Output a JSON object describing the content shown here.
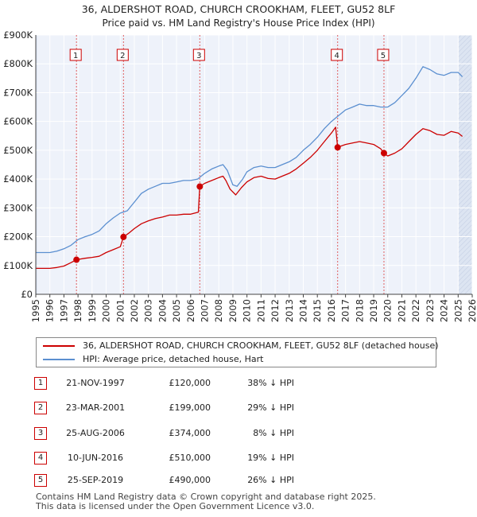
{
  "chart_data": {
    "type": "line",
    "title": "36, ALDERSHOT ROAD, CHURCH CROOKHAM, FLEET, GU52 8LF",
    "subtitle": "Price paid vs. HM Land Registry's House Price Index (HPI)",
    "xlim": [
      1995,
      2026
    ],
    "ylim": [
      0,
      900000
    ],
    "x_ticks": [
      "1995",
      "1996",
      "1997",
      "1998",
      "1999",
      "2000",
      "2001",
      "2002",
      "2003",
      "2004",
      "2005",
      "2006",
      "2007",
      "2008",
      "2009",
      "2010",
      "2011",
      "2012",
      "2013",
      "2014",
      "2015",
      "2016",
      "2017",
      "2018",
      "2019",
      "2020",
      "2021",
      "2022",
      "2023",
      "2024",
      "2025",
      "2026"
    ],
    "y_ticks": [
      {
        "value": 0,
        "label": "£0"
      },
      {
        "value": 100000,
        "label": "£100K"
      },
      {
        "value": 200000,
        "label": "£200K"
      },
      {
        "value": 300000,
        "label": "£300K"
      },
      {
        "value": 400000,
        "label": "£400K"
      },
      {
        "value": 500000,
        "label": "£500K"
      },
      {
        "value": 600000,
        "label": "£600K"
      },
      {
        "value": 700000,
        "label": "£700K"
      },
      {
        "value": 800000,
        "label": "£800K"
      },
      {
        "value": 900000,
        "label": "£900K"
      }
    ],
    "shaded_regions": [
      [
        1995,
        1995.1
      ],
      [
        2025.0,
        2026
      ]
    ],
    "series": [
      {
        "name": "36, ALDERSHOT ROAD, CHURCH CROOKHAM, FLEET, GU52 8LF (detached house)",
        "color": "#cc0000",
        "points": [
          [
            1995.0,
            90000
          ],
          [
            1996.0,
            90000
          ],
          [
            1996.5,
            93000
          ],
          [
            1997.0,
            98000
          ],
          [
            1997.5,
            110000
          ],
          [
            1997.89,
            120000
          ],
          [
            1998.5,
            125000
          ],
          [
            1999.0,
            128000
          ],
          [
            1999.5,
            132000
          ],
          [
            2000.0,
            145000
          ],
          [
            2000.5,
            155000
          ],
          [
            2001.0,
            165000
          ],
          [
            2001.23,
            199000
          ],
          [
            2001.6,
            212000
          ],
          [
            2002.0,
            228000
          ],
          [
            2002.5,
            245000
          ],
          [
            2003.0,
            255000
          ],
          [
            2003.5,
            263000
          ],
          [
            2004.0,
            268000
          ],
          [
            2004.5,
            275000
          ],
          [
            2005.0,
            275000
          ],
          [
            2005.5,
            278000
          ],
          [
            2006.0,
            278000
          ],
          [
            2006.55,
            285000
          ],
          [
            2006.65,
            374000
          ],
          [
            2007.0,
            385000
          ],
          [
            2007.5,
            395000
          ],
          [
            2008.0,
            405000
          ],
          [
            2008.3,
            410000
          ],
          [
            2008.5,
            395000
          ],
          [
            2008.8,
            365000
          ],
          [
            2009.2,
            345000
          ],
          [
            2009.6,
            370000
          ],
          [
            2010.0,
            390000
          ],
          [
            2010.5,
            405000
          ],
          [
            2011.0,
            410000
          ],
          [
            2011.5,
            402000
          ],
          [
            2012.0,
            400000
          ],
          [
            2012.5,
            410000
          ],
          [
            2013.0,
            420000
          ],
          [
            2013.5,
            435000
          ],
          [
            2014.0,
            455000
          ],
          [
            2014.5,
            475000
          ],
          [
            2015.0,
            500000
          ],
          [
            2015.5,
            530000
          ],
          [
            2016.0,
            560000
          ],
          [
            2016.3,
            580000
          ],
          [
            2016.44,
            510000
          ],
          [
            2016.7,
            515000
          ],
          [
            2017.0,
            520000
          ],
          [
            2017.5,
            525000
          ],
          [
            2018.0,
            530000
          ],
          [
            2018.5,
            525000
          ],
          [
            2019.0,
            520000
          ],
          [
            2019.5,
            505000
          ],
          [
            2019.73,
            490000
          ],
          [
            2020.0,
            480000
          ],
          [
            2020.5,
            490000
          ],
          [
            2021.0,
            505000
          ],
          [
            2021.5,
            530000
          ],
          [
            2022.0,
            555000
          ],
          [
            2022.5,
            575000
          ],
          [
            2023.0,
            568000
          ],
          [
            2023.5,
            555000
          ],
          [
            2024.0,
            552000
          ],
          [
            2024.5,
            565000
          ],
          [
            2025.0,
            560000
          ],
          [
            2025.3,
            548000
          ]
        ]
      },
      {
        "name": "HPI: Average price, detached house, Hart",
        "color": "#5b8fd0",
        "points": [
          [
            1995.0,
            145000
          ],
          [
            1995.5,
            145000
          ],
          [
            1996.0,
            145000
          ],
          [
            1996.5,
            150000
          ],
          [
            1997.0,
            158000
          ],
          [
            1997.5,
            170000
          ],
          [
            1998.0,
            190000
          ],
          [
            1998.5,
            200000
          ],
          [
            1999.0,
            208000
          ],
          [
            1999.5,
            220000
          ],
          [
            2000.0,
            245000
          ],
          [
            2000.5,
            265000
          ],
          [
            2001.0,
            282000
          ],
          [
            2001.5,
            290000
          ],
          [
            2002.0,
            320000
          ],
          [
            2002.5,
            350000
          ],
          [
            2003.0,
            365000
          ],
          [
            2003.5,
            375000
          ],
          [
            2004.0,
            385000
          ],
          [
            2004.5,
            385000
          ],
          [
            2005.0,
            390000
          ],
          [
            2005.5,
            395000
          ],
          [
            2006.0,
            395000
          ],
          [
            2006.5,
            400000
          ],
          [
            2007.0,
            420000
          ],
          [
            2007.5,
            435000
          ],
          [
            2008.0,
            445000
          ],
          [
            2008.3,
            450000
          ],
          [
            2008.6,
            430000
          ],
          [
            2009.0,
            380000
          ],
          [
            2009.3,
            375000
          ],
          [
            2009.7,
            400000
          ],
          [
            2010.0,
            425000
          ],
          [
            2010.5,
            440000
          ],
          [
            2011.0,
            445000
          ],
          [
            2011.5,
            440000
          ],
          [
            2012.0,
            440000
          ],
          [
            2012.5,
            450000
          ],
          [
            2013.0,
            460000
          ],
          [
            2013.5,
            475000
          ],
          [
            2014.0,
            500000
          ],
          [
            2014.5,
            520000
          ],
          [
            2015.0,
            545000
          ],
          [
            2015.5,
            575000
          ],
          [
            2016.0,
            600000
          ],
          [
            2016.5,
            620000
          ],
          [
            2017.0,
            640000
          ],
          [
            2017.5,
            650000
          ],
          [
            2018.0,
            660000
          ],
          [
            2018.5,
            655000
          ],
          [
            2019.0,
            655000
          ],
          [
            2019.5,
            650000
          ],
          [
            2020.0,
            650000
          ],
          [
            2020.5,
            665000
          ],
          [
            2021.0,
            690000
          ],
          [
            2021.5,
            715000
          ],
          [
            2022.0,
            750000
          ],
          [
            2022.5,
            790000
          ],
          [
            2023.0,
            780000
          ],
          [
            2023.5,
            765000
          ],
          [
            2024.0,
            760000
          ],
          [
            2024.5,
            770000
          ],
          [
            2025.0,
            770000
          ],
          [
            2025.3,
            755000
          ]
        ]
      }
    ],
    "sales": [
      {
        "num": "1",
        "x": 1997.89,
        "price": 120000,
        "date": "21-NOV-1997",
        "price_label": "£120,000",
        "hpi": "38% ↓ HPI"
      },
      {
        "num": "2",
        "x": 2001.23,
        "price": 199000,
        "date": "23-MAR-2001",
        "price_label": "£199,000",
        "hpi": "29% ↓ HPI"
      },
      {
        "num": "3",
        "x": 2006.65,
        "price": 374000,
        "date": "25-AUG-2006",
        "price_label": "£374,000",
        "hpi": "8% ↓ HPI"
      },
      {
        "num": "4",
        "x": 2016.44,
        "price": 510000,
        "date": "10-JUN-2016",
        "price_label": "£510,000",
        "hpi": "19% ↓ HPI"
      },
      {
        "num": "5",
        "x": 2019.73,
        "price": 490000,
        "date": "25-SEP-2019",
        "price_label": "£490,000",
        "hpi": "26% ↓ HPI"
      }
    ]
  },
  "legend": {
    "property": "36, ALDERSHOT ROAD, CHURCH CROOKHAM, FLEET, GU52 8LF (detached house)",
    "hpi": "HPI: Average price, detached house, Hart",
    "property_color": "#cc0000",
    "hpi_color": "#5b8fd0"
  },
  "footer": {
    "line1": "Contains HM Land Registry data © Crown copyright and database right 2025.",
    "line2": "This data is licensed under the Open Government Licence v3.0."
  }
}
